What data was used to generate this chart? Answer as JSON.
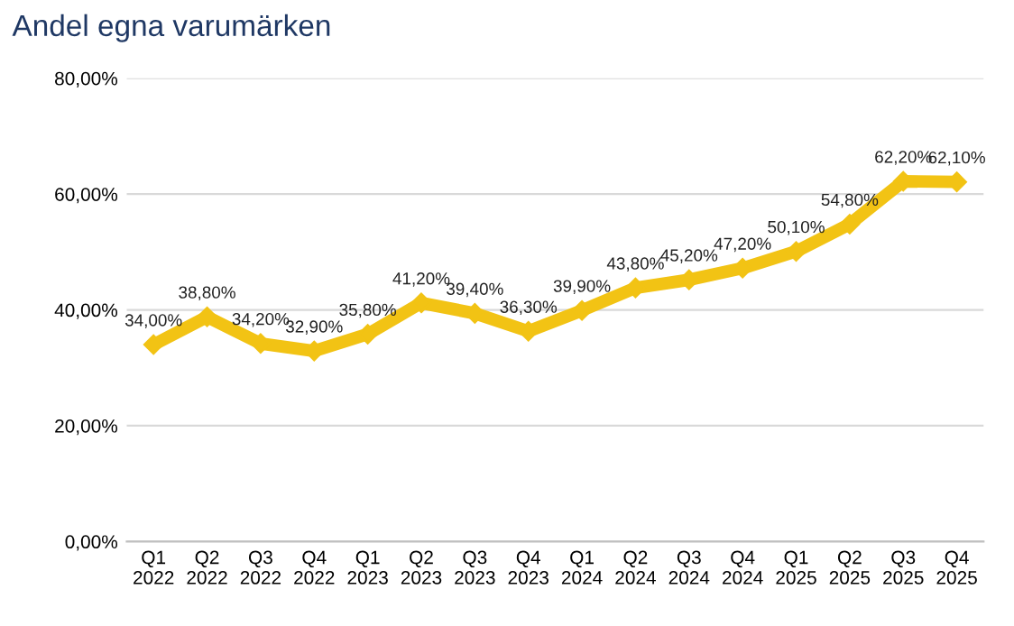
{
  "chart_data": {
    "type": "line",
    "title": "Andel egna varumärken",
    "categories": [
      "Q1\n2022",
      "Q2\n2022",
      "Q3\n2022",
      "Q4\n2022",
      "Q1\n2023",
      "Q2\n2023",
      "Q3\n2023",
      "Q4\n2023",
      "Q1\n2024",
      "Q2\n2024",
      "Q3\n2024",
      "Q4\n2024",
      "Q1\n2025",
      "Q2\n2025",
      "Q3\n2025",
      "Q4\n2025"
    ],
    "series": [
      {
        "color": "#f2c314",
        "values": [
          34.0,
          38.8,
          34.2,
          32.9,
          35.8,
          41.2,
          39.4,
          36.3,
          39.9,
          43.8,
          45.2,
          47.2,
          50.1,
          54.8,
          62.2,
          62.1
        ],
        "value_labels": [
          "34,00%",
          "38,80%",
          "34,20%",
          "32,90%",
          "35,80%",
          "41,20%",
          "39,40%",
          "36,30%",
          "39,90%",
          "43,80%",
          "45,20%",
          "47,20%",
          "50,10%",
          "54,80%",
          "62,20%",
          "62,10%"
        ]
      }
    ],
    "ylim": [
      0,
      80
    ],
    "yticks": [
      {
        "value": 0,
        "label": "0,00%"
      },
      {
        "value": 20,
        "label": "20,00%"
      },
      {
        "value": 40,
        "label": "40,00%"
      },
      {
        "value": 60,
        "label": "60,00%"
      },
      {
        "value": 80,
        "label": "80,00%"
      }
    ],
    "grid": "y",
    "marker": "diamond",
    "line_style": "solid"
  }
}
